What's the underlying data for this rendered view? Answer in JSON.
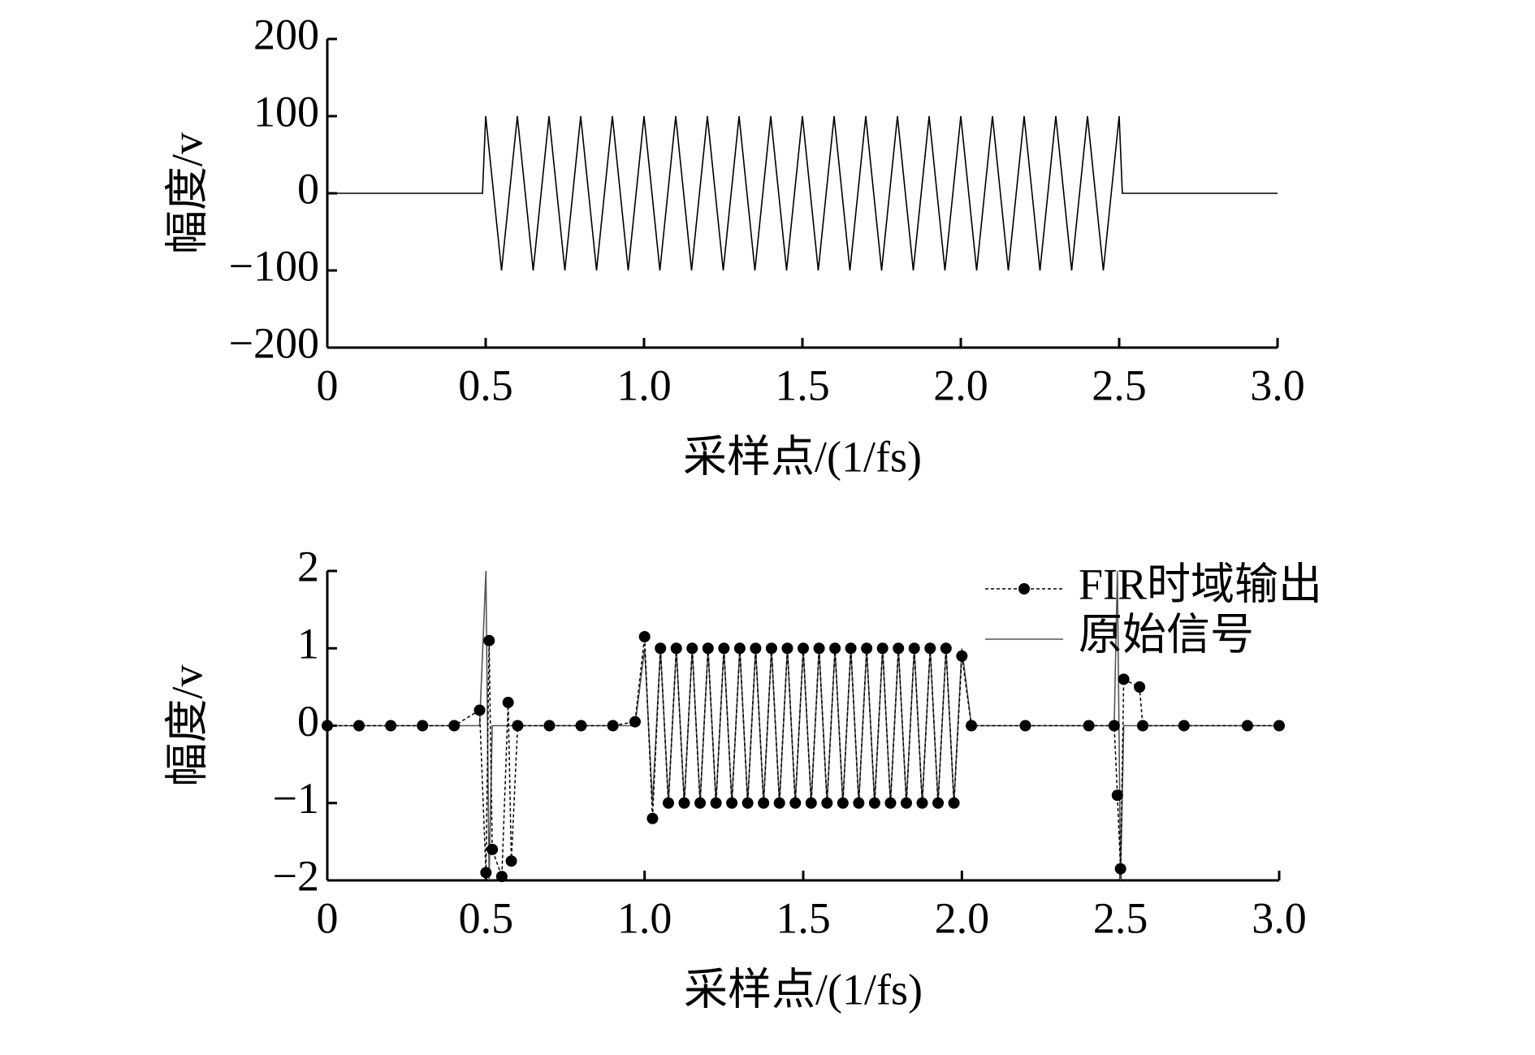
{
  "chart_data": [
    {
      "type": "line",
      "xlabel": "采样点/(1/fs)",
      "ylabel": "幅度/v",
      "x": [
        0,
        0.49,
        0.5,
        0.55,
        0.6,
        0.65,
        0.7,
        0.75,
        0.8,
        0.85,
        0.9,
        0.95,
        1.0,
        1.05,
        1.1,
        1.15,
        1.2,
        1.25,
        1.3,
        1.35,
        1.4,
        1.45,
        1.5,
        1.55,
        1.6,
        1.65,
        1.7,
        1.75,
        1.8,
        1.85,
        1.9,
        1.95,
        2.0,
        2.05,
        2.1,
        2.15,
        2.2,
        2.25,
        2.3,
        2.35,
        2.4,
        2.45,
        2.5,
        2.51,
        3.0
      ],
      "series": [
        {
          "color": "#000000",
          "values": [
            0,
            0,
            100,
            -100,
            100,
            -100,
            100,
            -100,
            100,
            -100,
            100,
            -100,
            100,
            -100,
            100,
            -100,
            100,
            -100,
            100,
            -100,
            100,
            -100,
            100,
            -100,
            100,
            -100,
            100,
            -100,
            100,
            -100,
            100,
            -100,
            100,
            -100,
            100,
            -100,
            100,
            -100,
            100,
            -100,
            100,
            -100,
            100,
            0,
            0
          ]
        }
      ],
      "xlim": [
        0,
        3.0
      ],
      "xticks": [
        0,
        0.5,
        {
          "value": 1,
          "label": "1.0"
        },
        1.5,
        {
          "value": 2,
          "label": "2.0"
        },
        2.5,
        {
          "value": 3,
          "label": "3.0"
        }
      ],
      "ylim": [
        -200,
        200
      ],
      "yticks": [
        {
          "value": -200,
          "label": "−200"
        },
        {
          "value": -100,
          "label": "−100"
        },
        0,
        100,
        200
      ]
    },
    {
      "type": "line",
      "xlabel": "采样点/(1/fs)",
      "ylabel": "幅度/v",
      "legend": "upper right",
      "x": [
        0,
        0.1,
        0.2,
        0.3,
        0.4,
        0.48,
        0.5,
        0.51,
        0.52,
        0.55,
        0.57,
        0.58,
        0.6,
        0.7,
        0.8,
        0.9,
        0.97,
        1.0,
        1.025,
        1.05,
        1.075,
        1.1,
        1.125,
        1.15,
        1.175,
        1.2,
        1.225,
        1.25,
        1.275,
        1.3,
        1.325,
        1.35,
        1.375,
        1.4,
        1.425,
        1.45,
        1.475,
        1.5,
        1.525,
        1.55,
        1.575,
        1.6,
        1.625,
        1.65,
        1.675,
        1.7,
        1.725,
        1.75,
        1.775,
        1.8,
        1.825,
        1.85,
        1.875,
        1.9,
        1.925,
        1.95,
        1.975,
        2.0,
        2.03,
        2.2,
        2.4,
        2.48,
        2.49,
        2.5,
        2.51,
        2.56,
        2.57,
        2.7,
        2.9,
        3.0
      ],
      "series": [
        {
          "name": "FIR时域输出",
          "color": "#000000",
          "linestyle": "dotted",
          "marker": "o",
          "values": [
            0,
            0,
            0,
            0,
            0,
            0.2,
            -1.9,
            1.1,
            -1.6,
            -1.95,
            0.3,
            -1.75,
            0,
            0,
            0,
            0,
            0.05,
            1.15,
            -1.2,
            1,
            -1,
            1,
            -1,
            1,
            -1,
            1,
            -1,
            1,
            -1,
            1,
            -1,
            1,
            -1,
            1,
            -1,
            1,
            -1,
            1,
            -1,
            1,
            -1,
            1,
            -1,
            1,
            -1,
            1,
            -1,
            1,
            -1,
            1,
            -1,
            1,
            -1,
            1,
            -1,
            1,
            -1,
            0.9,
            0,
            0,
            0,
            0,
            -0.9,
            -1.85,
            0.6,
            0.5,
            0,
            0,
            0,
            0
          ]
        },
        {
          "name": "原始信号",
          "color": "#555555",
          "linestyle": "solid",
          "values": [
            0,
            0,
            0,
            0,
            0,
            0,
            2,
            -2,
            0,
            0,
            0,
            0,
            0,
            0,
            0,
            0,
            0,
            1,
            -1,
            1,
            -1,
            1,
            -1,
            1,
            -1,
            1,
            -1,
            1,
            -1,
            1,
            -1,
            1,
            -1,
            1,
            -1,
            1,
            -1,
            1,
            -1,
            1,
            -1,
            1,
            -1,
            1,
            -1,
            1,
            -1,
            1,
            -1,
            1,
            -1,
            1,
            -1,
            1,
            -1,
            1,
            -1,
            1,
            0,
            0,
            0,
            0,
            2,
            -2,
            0,
            0,
            0,
            0,
            0,
            0
          ]
        }
      ],
      "xlim": [
        0,
        3.0
      ],
      "xticks": [
        0,
        0.5,
        {
          "value": 1,
          "label": "1.0"
        },
        1.5,
        {
          "value": 2,
          "label": "2.0"
        },
        2.5,
        {
          "value": 3,
          "label": "3.0"
        }
      ],
      "ylim": [
        -2,
        2
      ],
      "yticks": [
        {
          "value": -2,
          "label": "−2"
        },
        {
          "value": -1,
          "label": "−1"
        },
        0,
        1,
        2
      ]
    }
  ]
}
